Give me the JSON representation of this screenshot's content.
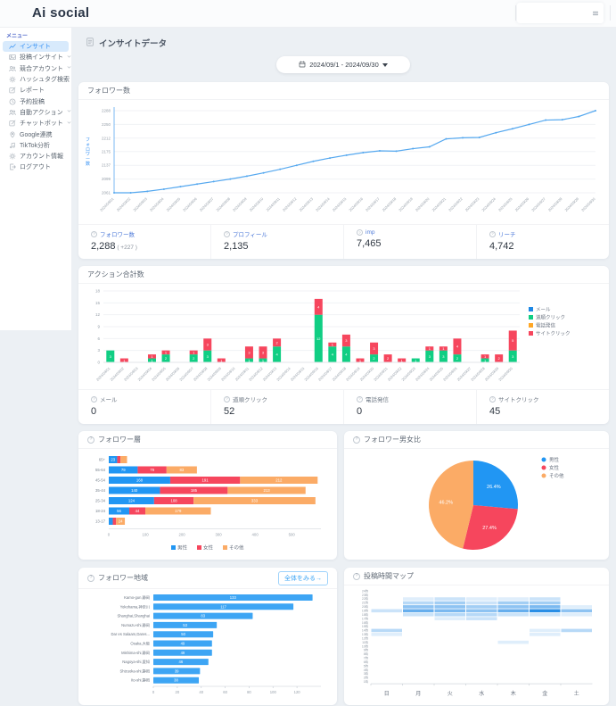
{
  "header": {
    "logo": "Ai social"
  },
  "sidebar": {
    "menu_label": "メニュー",
    "items": [
      {
        "label": "インサイト",
        "icon": "chart-line",
        "active": true,
        "submenu": false
      },
      {
        "label": "投稿インサイト",
        "icon": "image",
        "active": false,
        "submenu": true
      },
      {
        "label": "競合アカウント",
        "icon": "users",
        "active": false,
        "submenu": true
      },
      {
        "label": "ハッシュタグ検索",
        "icon": "gear",
        "active": false,
        "submenu": false
      },
      {
        "label": "レポート",
        "icon": "edit",
        "active": false,
        "submenu": false
      },
      {
        "label": "予約投稿",
        "icon": "clock",
        "active": false,
        "submenu": false
      },
      {
        "label": "自動アクション",
        "icon": "users",
        "active": false,
        "submenu": true
      },
      {
        "label": "チャットボット",
        "icon": "edit",
        "active": false,
        "submenu": true
      },
      {
        "label": "Google連携",
        "icon": "pin",
        "active": false,
        "submenu": false
      },
      {
        "label": "TikTok分析",
        "icon": "music",
        "active": false,
        "submenu": false
      },
      {
        "label": "アカウント情報",
        "icon": "gear",
        "active": false,
        "submenu": false
      },
      {
        "label": "ログアウト",
        "icon": "logout",
        "active": false,
        "submenu": false
      }
    ]
  },
  "main": {
    "page_title": "インサイトデータ",
    "date_range": "2024/09/1 - 2024/09/30",
    "cards": {
      "followers": {
        "title": "フォロワー数",
        "stats": [
          {
            "label": "フォロワー数",
            "value": "2,288",
            "delta": "( +227 )"
          },
          {
            "label": "プロフィール",
            "value": "2,135"
          },
          {
            "label": "imp",
            "value": "7,465"
          },
          {
            "label": "リーチ",
            "value": "4,742"
          }
        ]
      },
      "actions": {
        "title": "アクション合計数",
        "stats": [
          {
            "label": "メール",
            "value": "0"
          },
          {
            "label": "道順クリック",
            "value": "52"
          },
          {
            "label": "電話発信",
            "value": "0"
          },
          {
            "label": "サイトクリック",
            "value": "45"
          }
        ]
      },
      "demographics": {
        "title": "フォロワー層"
      },
      "gender": {
        "title": "フォロワー男女比"
      },
      "region": {
        "title": "フォロワー地域",
        "see_all": "全体をみる→"
      },
      "heatmap": {
        "title": "投稿時間マップ"
      }
    }
  },
  "icons": {
    "info": "?"
  },
  "colors": {
    "primary": "#2f8ef4",
    "line": "#55a8ef",
    "male": "#2196f3",
    "female": "#f6465d",
    "other": "#fbab66",
    "mail": "#1e88e5",
    "directions": "#10ce83",
    "calls": "#ffa726",
    "site": "#f6465d",
    "region_bar": "#3da5f4",
    "heat": "#1e88e5"
  },
  "chart_data": [
    {
      "id": "followers_trend",
      "type": "line",
      "title": "フォロワー数",
      "ylabel": "フォロワー数",
      "color": "#55a8ef",
      "ylim": [
        2061,
        2288
      ],
      "yticks": [
        2061,
        2099,
        2137,
        2175,
        2212,
        2250,
        2288
      ],
      "x": [
        "2024/09/01",
        "2024/09/02",
        "2024/09/03",
        "2024/09/04",
        "2024/09/05",
        "2024/09/06",
        "2024/09/07",
        "2024/09/08",
        "2024/09/09",
        "2024/09/10",
        "2024/09/11",
        "2024/09/12",
        "2024/09/13",
        "2024/09/14",
        "2024/09/15",
        "2024/09/16",
        "2024/09/17",
        "2024/09/18",
        "2024/09/19",
        "2024/09/20",
        "2024/09/21",
        "2024/09/22",
        "2024/09/23",
        "2024/09/24",
        "2024/09/25",
        "2024/09/26",
        "2024/09/27",
        "2024/09/28",
        "2024/09/29",
        "2024/09/30"
      ],
      "values": [
        2061,
        2061,
        2065,
        2071,
        2078,
        2085,
        2092,
        2099,
        2107,
        2116,
        2126,
        2137,
        2148,
        2157,
        2165,
        2172,
        2177,
        2176,
        2183,
        2188,
        2210,
        2213,
        2214,
        2227,
        2238,
        2250,
        2262,
        2263,
        2272,
        2288
      ]
    },
    {
      "id": "actions_total",
      "type": "bar",
      "stacked": true,
      "title": "アクション合計数",
      "ymax": 18,
      "yticks": [
        0,
        3,
        6,
        9,
        12,
        15,
        18
      ],
      "categories": [
        "2024/09/01",
        "2024/09/02",
        "2024/09/03",
        "2024/09/04",
        "2024/09/05",
        "2024/09/06",
        "2024/09/07",
        "2024/09/08",
        "2024/09/09",
        "2024/09/10",
        "2024/09/11",
        "2024/09/12",
        "2024/09/13",
        "2024/09/14",
        "2024/09/15",
        "2024/09/16",
        "2024/09/17",
        "2024/09/18",
        "2024/09/19",
        "2024/09/20",
        "2024/09/21",
        "2024/09/22",
        "2024/09/23",
        "2024/09/24",
        "2024/09/25",
        "2024/09/26",
        "2024/09/27",
        "2024/09/28",
        "2024/09/29",
        "2024/09/30"
      ],
      "series": [
        {
          "name": "メール",
          "color": "#1e88e5",
          "values": [
            0,
            0,
            0,
            0,
            0,
            0,
            0,
            0,
            0,
            0,
            0,
            0,
            0,
            0,
            0,
            0,
            0,
            0,
            0,
            0,
            0,
            0,
            0,
            0,
            0,
            0,
            0,
            0,
            0,
            0
          ]
        },
        {
          "name": "道順クリック",
          "color": "#10ce83",
          "values": [
            3,
            0,
            0,
            1,
            2,
            0,
            2,
            3,
            0,
            0,
            1,
            1,
            4,
            0,
            0,
            12,
            4,
            4,
            0,
            2,
            0,
            0,
            1,
            3,
            3,
            2,
            0,
            1,
            0,
            3
          ]
        },
        {
          "name": "電話発信",
          "color": "#ffa726",
          "values": [
            0,
            0,
            0,
            0,
            0,
            0,
            0,
            0,
            0,
            0,
            0,
            0,
            0,
            0,
            0,
            0,
            0,
            0,
            0,
            0,
            0,
            0,
            0,
            0,
            0,
            0,
            0,
            0,
            0,
            0
          ]
        },
        {
          "name": "サイトクリック",
          "color": "#f6465d",
          "values": [
            0,
            1,
            0,
            1,
            1,
            0,
            1,
            3,
            1,
            0,
            3,
            3,
            2,
            0,
            0,
            4,
            1,
            3,
            1,
            3,
            2,
            1,
            0,
            1,
            1,
            4,
            0,
            1,
            2,
            5
          ]
        }
      ]
    },
    {
      "id": "follower_demographics",
      "type": "bar",
      "orientation": "horizontal",
      "stacked": true,
      "title": "フォロワー層",
      "categories": [
        "65+",
        "55-64",
        "45-54",
        "35-44",
        "25-34",
        "18-24",
        "13-17"
      ],
      "xmax": 580,
      "xticks": [
        0,
        100,
        200,
        300,
        400,
        500
      ],
      "series": [
        {
          "name": "男性",
          "color": "#2196f3",
          "values": [
            23,
            79,
            168,
            140,
            124,
            56,
            11
          ]
        },
        {
          "name": "女性",
          "color": "#f6465d",
          "values": [
            9,
            79,
            191,
            185,
            108,
            44,
            9
          ]
        },
        {
          "name": "その他",
          "color": "#fbab66",
          "values": [
            18,
            83,
            212,
            213,
            333,
            179,
            24
          ]
        }
      ]
    },
    {
      "id": "gender_ratio",
      "type": "pie",
      "title": "フォロワー男女比",
      "legend_position": "top-right",
      "slices": [
        {
          "name": "男性",
          "pct": 26.4,
          "color": "#2196f3"
        },
        {
          "name": "女性",
          "pct": 27.4,
          "color": "#f6465d"
        },
        {
          "name": "その他",
          "pct": 46.2,
          "color": "#fbab66"
        }
      ]
    },
    {
      "id": "follower_regions",
      "type": "bar",
      "orientation": "horizontal",
      "title": "フォロワー地域",
      "color": "#3da5f4",
      "xmax": 140,
      "xticks": [
        0,
        20,
        40,
        60,
        80,
        100,
        120
      ],
      "categories": [
        "Kamo-gun,静岡",
        "Yokohama,神奈川",
        "Shanghai,Shanghai",
        "Numazu-shi,静岡",
        "Dar es Salaam,Dares...",
        "Osaka,大阪",
        "Mishima-shi,静岡",
        "Nagoya-shi,愛知",
        "Shizuoka-shi,静岡",
        "Ito-shi,静岡"
      ],
      "values": [
        133,
        117,
        83,
        53,
        50,
        49,
        49,
        46,
        39,
        38
      ]
    },
    {
      "id": "post_time_map",
      "type": "heatmap",
      "title": "投稿時間マップ",
      "color": "#1e88e5",
      "days": [
        "日",
        "月",
        "火",
        "水",
        "木",
        "金",
        "土"
      ],
      "hours": [
        "24時",
        "23時",
        "22時",
        "21時",
        "20時",
        "19時",
        "18時",
        "17時",
        "16時",
        "15時",
        "14時",
        "13時",
        "12時",
        "11時",
        "10時",
        "9時",
        "8時",
        "7時",
        "6時",
        "5時",
        "4時",
        "3時",
        "2時",
        "1時"
      ],
      "grid": [
        [
          0,
          0,
          0,
          0,
          0,
          0,
          0
        ],
        [
          0,
          0,
          0,
          0,
          0,
          0,
          0
        ],
        [
          0,
          1,
          2,
          1,
          1,
          2,
          0
        ],
        [
          0,
          3,
          4,
          2,
          4,
          4,
          0
        ],
        [
          0,
          5,
          5,
          4,
          5,
          6,
          1
        ],
        [
          2,
          7,
          6,
          5,
          7,
          10,
          5
        ],
        [
          0,
          2,
          3,
          3,
          2,
          2,
          1
        ],
        [
          0,
          0,
          1,
          2,
          0,
          0,
          0
        ],
        [
          0,
          0,
          0,
          0,
          0,
          0,
          0
        ],
        [
          0,
          0,
          0,
          0,
          0,
          0,
          0
        ],
        [
          3,
          0,
          0,
          0,
          0,
          1,
          3
        ],
        [
          1,
          0,
          0,
          0,
          0,
          1,
          0
        ],
        [
          0,
          0,
          0,
          0,
          0,
          0,
          0
        ],
        [
          0,
          0,
          0,
          0,
          1,
          0,
          0
        ],
        [
          0,
          0,
          0,
          0,
          0,
          0,
          0
        ],
        [
          0,
          0,
          0,
          0,
          0,
          0,
          0
        ],
        [
          0,
          0,
          0,
          0,
          0,
          0,
          0
        ],
        [
          0,
          0,
          0,
          0,
          0,
          0,
          0
        ],
        [
          0,
          0,
          0,
          0,
          0,
          0,
          0
        ],
        [
          0,
          0,
          0,
          0,
          0,
          0,
          0
        ],
        [
          0,
          0,
          0,
          0,
          0,
          0,
          0
        ],
        [
          0,
          0,
          0,
          0,
          0,
          0,
          0
        ],
        [
          0,
          0,
          0,
          0,
          0,
          0,
          0
        ],
        [
          0,
          0,
          0,
          0,
          0,
          0,
          0
        ]
      ]
    }
  ]
}
